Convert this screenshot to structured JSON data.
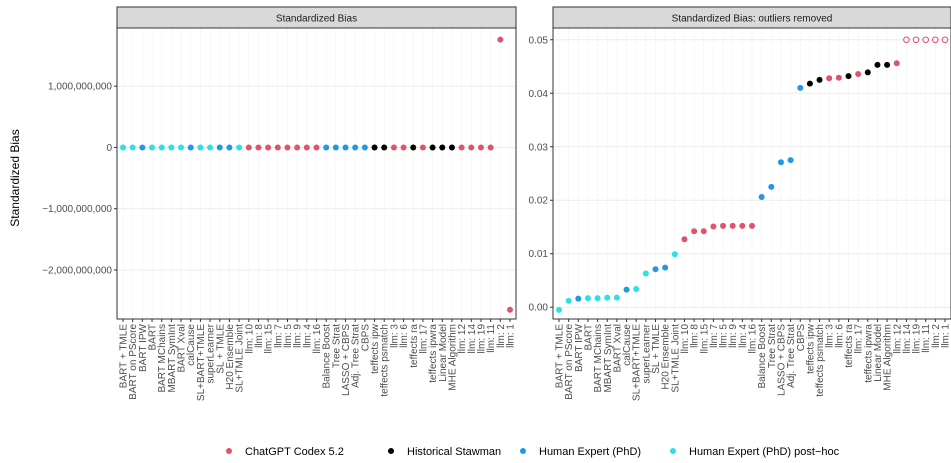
{
  "chart_data": {
    "type": "scatter",
    "ylabel": "Standardized Bias",
    "legend": {
      "position": "bottom",
      "entries": [
        {
          "name": "ChatGPT Codex 5.2",
          "color": "#DF536B"
        },
        {
          "name": "Historical Stawman",
          "color": "#000000"
        },
        {
          "name": "Human Expert (PhD)",
          "color": "#2297E6"
        },
        {
          "name": "Human Expert (PhD) post−hoc",
          "color": "#28E2E5"
        }
      ]
    },
    "panels": [
      {
        "title": "Standardized Bias",
        "yticks": [
          {
            "value": -2000000000,
            "label": "−2,000,000,000"
          },
          {
            "value": -1000000000,
            "label": "−1,000,000,000"
          },
          {
            "value": 0,
            "label": "0"
          },
          {
            "value": 1000000000,
            "label": "1,000,000,000"
          }
        ],
        "ylim": [
          -2800000000,
          1950000000
        ],
        "points": [
          {
            "label": "BART + TMLE",
            "value": 0,
            "group": "Human Expert (PhD) post−hoc"
          },
          {
            "label": "BART on PScore",
            "value": 0,
            "group": "Human Expert (PhD) post−hoc"
          },
          {
            "label": "BART IPW",
            "value": 0,
            "group": "Human Expert (PhD)"
          },
          {
            "label": "BART",
            "value": 0,
            "group": "Human Expert (PhD) post−hoc"
          },
          {
            "label": "BART MChains",
            "value": 0,
            "group": "Human Expert (PhD) post−hoc"
          },
          {
            "label": "MBART SymInt",
            "value": 0,
            "group": "Human Expert (PhD) post−hoc"
          },
          {
            "label": "BART Xval",
            "value": 0,
            "group": "Human Expert (PhD) post−hoc"
          },
          {
            "label": "calCause",
            "value": 0,
            "group": "Human Expert (PhD)"
          },
          {
            "label": "SL+BART+TMLE",
            "value": 0,
            "group": "Human Expert (PhD) post−hoc"
          },
          {
            "label": "superLearner",
            "value": 0,
            "group": "Human Expert (PhD) post−hoc"
          },
          {
            "label": "SL + TMLE",
            "value": 0,
            "group": "Human Expert (PhD)"
          },
          {
            "label": "H20 Ensemble",
            "value": 0,
            "group": "Human Expert (PhD)"
          },
          {
            "label": "SL+TMLE Joint",
            "value": 0,
            "group": "Human Expert (PhD) post−hoc"
          },
          {
            "label": "llm: 10",
            "value": 0,
            "group": "ChatGPT Codex 5.2"
          },
          {
            "label": "llm: 8",
            "value": 0,
            "group": "ChatGPT Codex 5.2"
          },
          {
            "label": "llm: 15",
            "value": 0,
            "group": "ChatGPT Codex 5.2"
          },
          {
            "label": "llm: 7",
            "value": 0,
            "group": "ChatGPT Codex 5.2"
          },
          {
            "label": "llm: 5",
            "value": 0,
            "group": "ChatGPT Codex 5.2"
          },
          {
            "label": "llm: 9",
            "value": 0,
            "group": "ChatGPT Codex 5.2"
          },
          {
            "label": "llm: 4",
            "value": 0,
            "group": "ChatGPT Codex 5.2"
          },
          {
            "label": "llm: 16",
            "value": 0,
            "group": "ChatGPT Codex 5.2"
          },
          {
            "label": "Balance Boost",
            "value": 0,
            "group": "Human Expert (PhD)"
          },
          {
            "label": "Tree Strat",
            "value": 0,
            "group": "Human Expert (PhD)"
          },
          {
            "label": "LASSO + CBPS",
            "value": 0,
            "group": "Human Expert (PhD)"
          },
          {
            "label": "Adj. Tree Strat",
            "value": 0,
            "group": "Human Expert (PhD)"
          },
          {
            "label": "CBPS",
            "value": 0,
            "group": "Human Expert (PhD)"
          },
          {
            "label": "teffects ipw",
            "value": 0,
            "group": "Historical Stawman"
          },
          {
            "label": "teffects psmatch",
            "value": 0,
            "group": "Historical Stawman"
          },
          {
            "label": "llm: 3",
            "value": 0,
            "group": "ChatGPT Codex 5.2"
          },
          {
            "label": "llm: 6",
            "value": 0,
            "group": "ChatGPT Codex 5.2"
          },
          {
            "label": "teffects ra",
            "value": 0,
            "group": "Historical Stawman"
          },
          {
            "label": "llm: 17",
            "value": 0,
            "group": "ChatGPT Codex 5.2"
          },
          {
            "label": "teffects ipwra",
            "value": 0,
            "group": "Historical Stawman"
          },
          {
            "label": "Linear Model",
            "value": 0,
            "group": "Historical Stawman"
          },
          {
            "label": "MHE Algorithm",
            "value": 0,
            "group": "Historical Stawman"
          },
          {
            "label": "llm: 12",
            "value": 0,
            "group": "ChatGPT Codex 5.2"
          },
          {
            "label": "llm: 14",
            "value": 0,
            "group": "ChatGPT Codex 5.2"
          },
          {
            "label": "llm: 19",
            "value": 0,
            "group": "ChatGPT Codex 5.2"
          },
          {
            "label": "llm: 11",
            "value": 0,
            "group": "ChatGPT Codex 5.2"
          },
          {
            "label": "llm: 2",
            "value": 1760000000,
            "group": "ChatGPT Codex 5.2"
          },
          {
            "label": "llm: 1",
            "value": -2650000000,
            "group": "ChatGPT Codex 5.2"
          }
        ]
      },
      {
        "title": "Standardized Bias: outliers removed",
        "yticks": [
          {
            "value": 0,
            "label": "0.00"
          },
          {
            "value": 0.01,
            "label": "0.01"
          },
          {
            "value": 0.02,
            "label": "0.02"
          },
          {
            "value": 0.03,
            "label": "0.03"
          },
          {
            "value": 0.04,
            "label": "0.04"
          },
          {
            "value": 0.05,
            "label": "0.05"
          }
        ],
        "ylim": [
          -0.0022,
          0.0522
        ],
        "points": [
          {
            "label": "BART + TMLE",
            "value": -0.0005,
            "group": "Human Expert (PhD) post−hoc"
          },
          {
            "label": "BART on PScore",
            "value": 0.0012,
            "group": "Human Expert (PhD) post−hoc"
          },
          {
            "label": "BART IPW",
            "value": 0.0016,
            "group": "Human Expert (PhD)"
          },
          {
            "label": "BART",
            "value": 0.0017,
            "group": "Human Expert (PhD) post−hoc"
          },
          {
            "label": "BART MChains",
            "value": 0.0017,
            "group": "Human Expert (PhD) post−hoc"
          },
          {
            "label": "MBART SymInt",
            "value": 0.0018,
            "group": "Human Expert (PhD) post−hoc"
          },
          {
            "label": "BART Xval",
            "value": 0.0018,
            "group": "Human Expert (PhD) post−hoc"
          },
          {
            "label": "calCause",
            "value": 0.0033,
            "group": "Human Expert (PhD)"
          },
          {
            "label": "SL+BART+TMLE",
            "value": 0.0034,
            "group": "Human Expert (PhD) post−hoc"
          },
          {
            "label": "superLearner",
            "value": 0.0063,
            "group": "Human Expert (PhD) post−hoc"
          },
          {
            "label": "SL + TMLE",
            "value": 0.0071,
            "group": "Human Expert (PhD)"
          },
          {
            "label": "H20 Ensemble",
            "value": 0.0074,
            "group": "Human Expert (PhD)"
          },
          {
            "label": "SL+TMLE Joint",
            "value": 0.0099,
            "group": "Human Expert (PhD) post−hoc"
          },
          {
            "label": "llm: 10",
            "value": 0.0127,
            "group": "ChatGPT Codex 5.2"
          },
          {
            "label": "llm: 8",
            "value": 0.0142,
            "group": "ChatGPT Codex 5.2"
          },
          {
            "label": "llm: 15",
            "value": 0.0142,
            "group": "ChatGPT Codex 5.2"
          },
          {
            "label": "llm: 7",
            "value": 0.0151,
            "group": "ChatGPT Codex 5.2"
          },
          {
            "label": "llm: 5",
            "value": 0.0152,
            "group": "ChatGPT Codex 5.2"
          },
          {
            "label": "llm: 9",
            "value": 0.0152,
            "group": "ChatGPT Codex 5.2"
          },
          {
            "label": "llm: 4",
            "value": 0.0152,
            "group": "ChatGPT Codex 5.2"
          },
          {
            "label": "llm: 16",
            "value": 0.0152,
            "group": "ChatGPT Codex 5.2"
          },
          {
            "label": "Balance Boost",
            "value": 0.0206,
            "group": "Human Expert (PhD)"
          },
          {
            "label": "Tree Strat",
            "value": 0.0225,
            "group": "Human Expert (PhD)"
          },
          {
            "label": "LASSO + CBPS",
            "value": 0.0271,
            "group": "Human Expert (PhD)"
          },
          {
            "label": "Adj. Tree Strat",
            "value": 0.0275,
            "group": "Human Expert (PhD)"
          },
          {
            "label": "CBPS",
            "value": 0.041,
            "group": "Human Expert (PhD)"
          },
          {
            "label": "teffects ipw",
            "value": 0.0418,
            "group": "Historical Stawman"
          },
          {
            "label": "teffects psmatch",
            "value": 0.0425,
            "group": "Historical Stawman"
          },
          {
            "label": "llm: 3",
            "value": 0.0428,
            "group": "ChatGPT Codex 5.2"
          },
          {
            "label": "llm: 6",
            "value": 0.0429,
            "group": "ChatGPT Codex 5.2"
          },
          {
            "label": "teffects ra",
            "value": 0.0432,
            "group": "Historical Stawman"
          },
          {
            "label": "llm: 17",
            "value": 0.0436,
            "group": "ChatGPT Codex 5.2"
          },
          {
            "label": "teffects ipwra",
            "value": 0.0439,
            "group": "Historical Stawman"
          },
          {
            "label": "Linear Model",
            "value": 0.0453,
            "group": "Historical Stawman"
          },
          {
            "label": "MHE Algorithm",
            "value": 0.0453,
            "group": "Historical Stawman"
          },
          {
            "label": "llm: 12",
            "value": 0.0456,
            "group": "ChatGPT Codex 5.2"
          },
          {
            "label": "llm: 14",
            "value": 0.05,
            "group": "ChatGPT Codex 5.2",
            "truncated": true
          },
          {
            "label": "llm: 19",
            "value": 0.05,
            "group": "ChatGPT Codex 5.2",
            "truncated": true
          },
          {
            "label": "llm: 11",
            "value": 0.05,
            "group": "ChatGPT Codex 5.2",
            "truncated": true
          },
          {
            "label": "llm: 2",
            "value": 0.05,
            "group": "ChatGPT Codex 5.2",
            "truncated": true
          },
          {
            "label": "llm: 1",
            "value": 0.05,
            "group": "ChatGPT Codex 5.2",
            "truncated": true
          }
        ]
      }
    ]
  }
}
